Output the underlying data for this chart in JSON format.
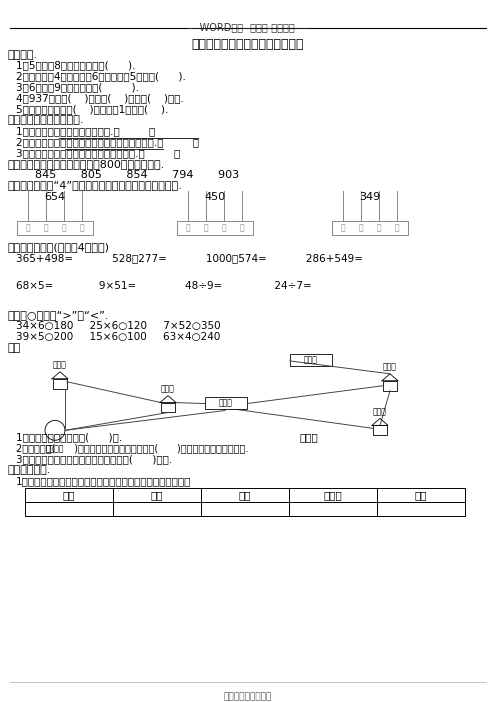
{
  "header": "----WORD格式--可编辑-专业资料----",
  "title": "苏教版二年级下册数学期末试卷七",
  "bg_color": "#ffffff",
  "footer": "完整版学习资料分享"
}
